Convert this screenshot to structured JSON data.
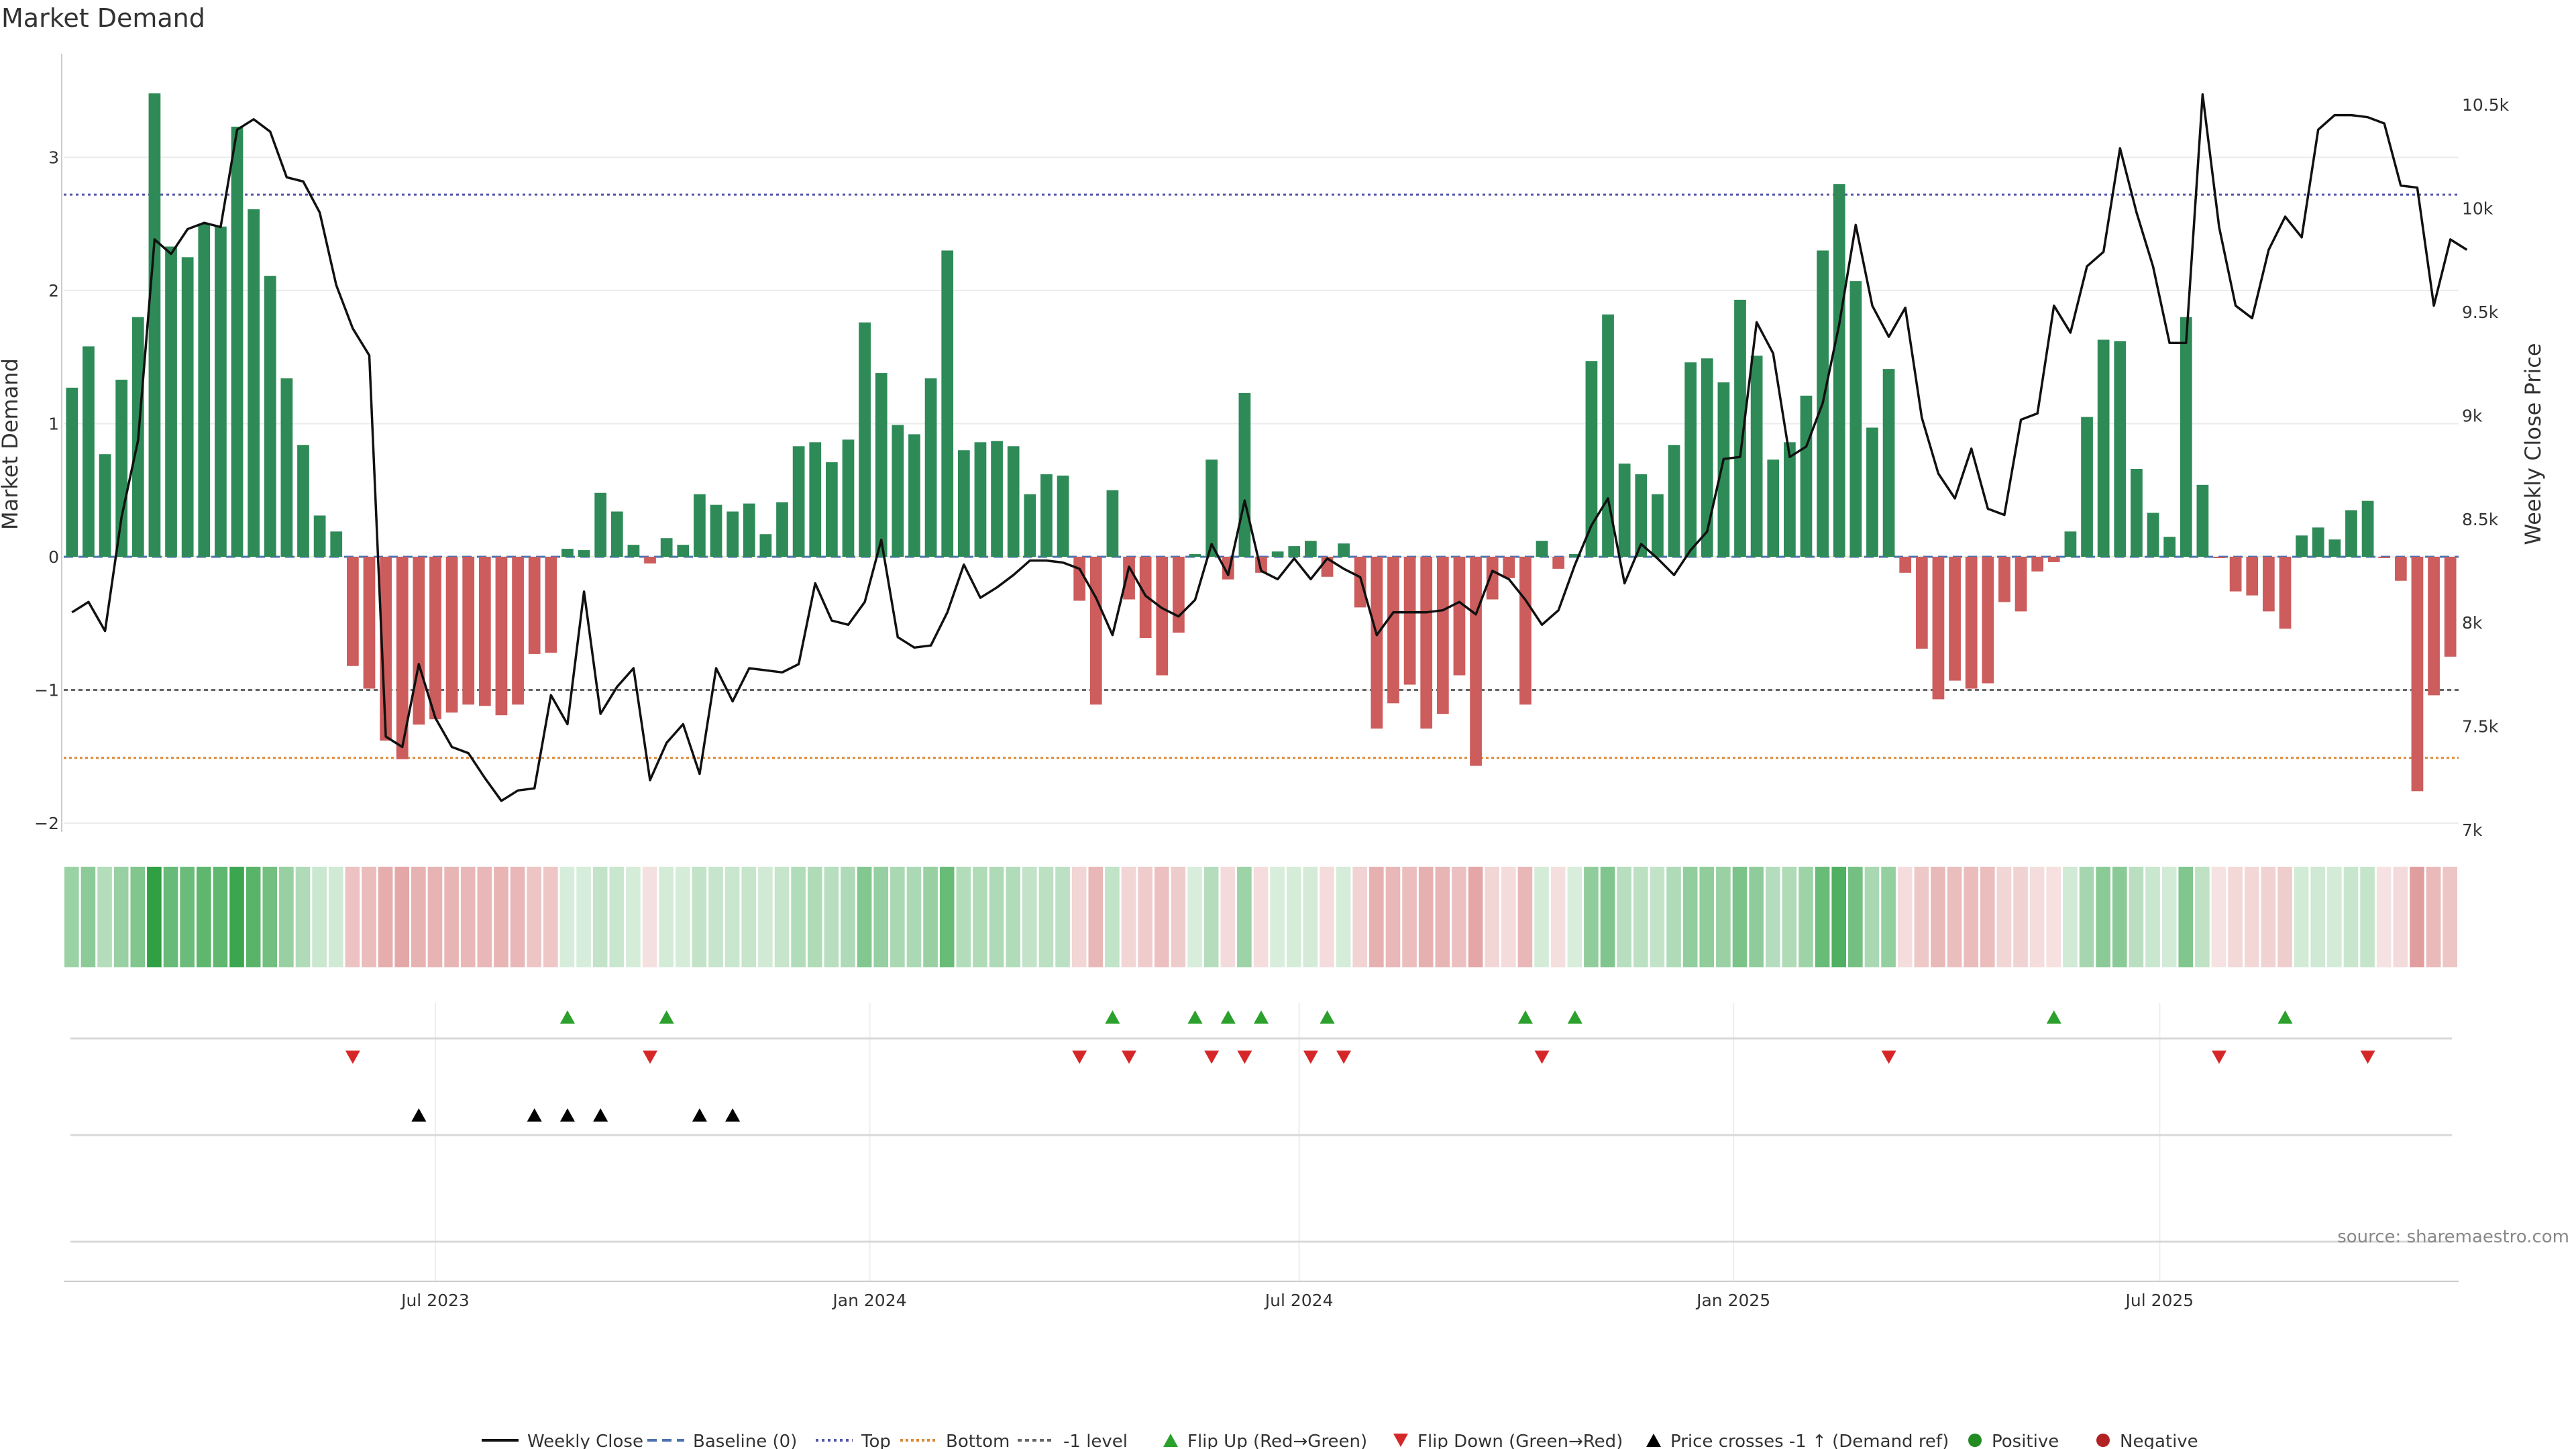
{
  "colors": {
    "positive_bar": "#2e8b57",
    "negative_bar": "#cd5c5c",
    "price_line": "#111111",
    "baseline": "#4c72b0",
    "top_line": "#5555aa",
    "bottom_line": "#dd8833",
    "minus1_line": "#666666",
    "flip_up": "#2ca02c",
    "flip_down": "#d62728",
    "price_cross": "#000000",
    "positive_dot": "#228b22",
    "negative_dot": "#b22222"
  },
  "chart_data": {
    "type": "bar",
    "title": "Market Demand",
    "ylabel": "Market Demand",
    "y2label": "Weekly Close Price",
    "ylim": [
      -2.05,
      3.55
    ],
    "y2lim": [
      7000,
      10575
    ],
    "yticks": [
      -2,
      -1,
      0,
      1,
      2,
      3
    ],
    "ytick_labels": [
      "−2",
      "−1",
      "0",
      "1",
      "2",
      "3"
    ],
    "y2ticks": [
      7000,
      7500,
      8000,
      8500,
      9000,
      9500,
      10000,
      10500
    ],
    "y2tick_labels": [
      "7k",
      "7.5k",
      "8k",
      "8.5k",
      "9k",
      "9.5k",
      "10k",
      "10.5k"
    ],
    "reference_lines": {
      "top": 2.72,
      "bottom": -1.51,
      "minus_one": -1.0,
      "baseline": 0
    },
    "x_tick_labels": [
      {
        "label": "Jul 2023",
        "week": 22
      },
      {
        "label": "Jan 2024",
        "week": 48.3
      },
      {
        "label": "Jul 2024",
        "week": 74.3
      },
      {
        "label": "Jan 2025",
        "week": 100.6
      },
      {
        "label": "Jul 2025",
        "week": 126.4
      }
    ],
    "series": [
      {
        "name": "Market Demand",
        "kind": "bar",
        "values": [
          1.27,
          1.58,
          0.77,
          1.33,
          1.8,
          3.48,
          2.33,
          2.25,
          2.5,
          2.48,
          3.23,
          2.61,
          2.11,
          1.34,
          0.84,
          0.31,
          0.19,
          -0.82,
          -0.99,
          -1.38,
          -1.52,
          -1.26,
          -1.22,
          -1.17,
          -1.11,
          -1.12,
          -1.19,
          -1.11,
          -0.73,
          -0.72,
          0.06,
          0.05,
          0.48,
          0.34,
          0.09,
          -0.05,
          0.14,
          0.09,
          0.47,
          0.39,
          0.34,
          0.4,
          0.17,
          0.41,
          0.83,
          0.86,
          0.71,
          0.88,
          1.76,
          1.38,
          0.99,
          0.92,
          1.34,
          2.3,
          0.8,
          0.86,
          0.87,
          0.83,
          0.47,
          0.62,
          0.61,
          -0.33,
          -1.11,
          0.5,
          -0.32,
          -0.61,
          -0.89,
          -0.57,
          0.02,
          0.73,
          -0.17,
          1.23,
          -0.12,
          0.04,
          0.08,
          0.12,
          -0.15,
          0.1,
          -0.38,
          -1.29,
          -1.1,
          -0.96,
          -1.29,
          -1.18,
          -0.89,
          -1.57,
          -0.32,
          -0.16,
          -1.11,
          0.12,
          -0.09,
          0.02,
          1.47,
          1.82,
          0.7,
          0.62,
          0.47,
          0.84,
          1.46,
          1.49,
          1.31,
          1.93,
          1.51,
          0.73,
          0.86,
          1.21,
          2.3,
          2.8,
          2.07,
          0.97,
          1.41,
          -0.12,
          -0.69,
          -1.07,
          -0.93,
          -0.99,
          -0.95,
          -0.34,
          -0.41,
          -0.11,
          -0.04,
          0.19,
          1.05,
          1.63,
          1.62,
          0.66,
          0.33,
          0.15,
          1.8,
          0.54,
          -0.01,
          -0.26,
          -0.29,
          -0.41,
          -0.54,
          0.16,
          0.22,
          0.13,
          0.35,
          0.42,
          -0.01,
          -0.18,
          -1.76,
          -1.04,
          -0.75
        ]
      },
      {
        "name": "Weekly Close",
        "kind": "line",
        "axis": "right",
        "values": [
          8050,
          8100,
          7960,
          8510,
          8880,
          9850,
          9780,
          9900,
          9930,
          9910,
          10380,
          10430,
          10370,
          10150,
          10130,
          9980,
          9630,
          9420,
          9290,
          7450,
          7400,
          7800,
          7540,
          7400,
          7370,
          7250,
          7140,
          7190,
          7200,
          7650,
          7510,
          8150,
          7560,
          7690,
          7780,
          7240,
          7420,
          7510,
          7270,
          7780,
          7620,
          7780,
          7770,
          7760,
          7800,
          8190,
          8010,
          7990,
          8100,
          8400,
          7930,
          7880,
          7890,
          8050,
          8280,
          8120,
          8170,
          8230,
          8300,
          8300,
          8290,
          8260,
          8120,
          7940,
          8270,
          8130,
          8070,
          8030,
          8110,
          8380,
          8230,
          8590,
          8250,
          8210,
          8310,
          8210,
          8310,
          8260,
          8220,
          7940,
          8050,
          8050,
          8050,
          8060,
          8100,
          8040,
          8250,
          8210,
          8110,
          7990,
          8060,
          8280,
          8470,
          8600,
          8190,
          8380,
          8310,
          8230,
          8350,
          8440,
          8790,
          8800,
          9450,
          9300,
          8800,
          8850,
          9060,
          9440,
          9920,
          9530,
          9380,
          9520,
          8990,
          8720,
          8600,
          8840,
          8550,
          8520,
          8980,
          9010,
          9530,
          9400,
          9720,
          9790,
          10290,
          9980,
          9720,
          9350,
          9350,
          10550,
          9910,
          9530,
          9470,
          9800,
          9960,
          9860,
          10380,
          10450,
          10450,
          10440,
          10410,
          10110,
          10100,
          9530,
          9850,
          9800
        ]
      }
    ],
    "flip_up_weeks": [
      30,
      36,
      63,
      68,
      70,
      72,
      76,
      88,
      91,
      120,
      134
    ],
    "flip_down_weeks": [
      17,
      35,
      61,
      64,
      69,
      71,
      75,
      77,
      89,
      110,
      130,
      139
    ],
    "price_cross_weeks": [
      21,
      28,
      30,
      32,
      38,
      40
    ],
    "legend": [
      "Weekly Close",
      "Baseline (0)",
      "Top",
      "Bottom",
      "-1 level",
      "Flip Up (Red→Green)",
      "Flip Down (Green→Red)",
      "Price crosses -1 ↑ (Demand ref)",
      "Positive",
      "Negative"
    ]
  },
  "source_label": "source: sharemaestro.com"
}
